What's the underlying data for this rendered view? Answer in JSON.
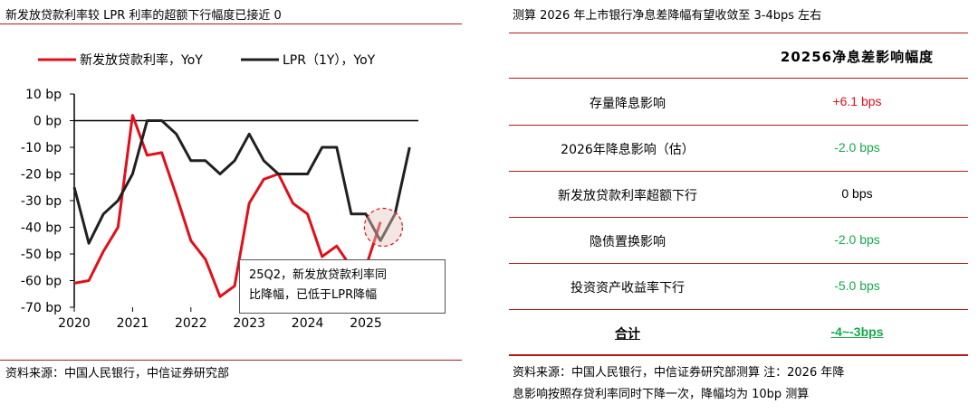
{
  "left": {
    "title": "新发放贷款利率较 LPR 利率的超额下行幅度已接近 0",
    "legend": [
      {
        "label": "新发放贷款利率，YoY",
        "color": "#e0101a"
      },
      {
        "label": "LPR（1Y），YoY",
        "color": "#231f20"
      }
    ],
    "annotation": "25Q2，新发放贷款利率同\n比降幅，已低于LPR降幅",
    "source": "资料来源：中国人民银行，中信证券研究部"
  },
  "chart_data": {
    "type": "line",
    "title": "新发放贷款利率较 LPR 利率的超额下行幅度已接近 0",
    "ylim": [
      -70,
      10
    ],
    "xlim": [
      2020,
      2025.9
    ],
    "yticks": [
      "10 bp",
      "0 bp",
      "-10 bp",
      "-20 bp",
      "-30 bp",
      "-40 bp",
      "-50 bp",
      "-60 bp",
      "-70 bp"
    ],
    "ytick_values": [
      10,
      0,
      -10,
      -20,
      -30,
      -40,
      -50,
      -60,
      -70
    ],
    "xticks": [
      "2020",
      "2021",
      "2022",
      "2023",
      "2024",
      "2025"
    ],
    "xtick_values": [
      2020,
      2021,
      2022,
      2023,
      2024,
      2025
    ],
    "series": [
      {
        "name": "新发放贷款利率，YoY",
        "color": "#e0101a",
        "x": [
          2020.0,
          2020.25,
          2020.5,
          2020.75,
          2021.0,
          2021.25,
          2021.5,
          2021.75,
          2022.0,
          2022.25,
          2022.5,
          2022.75,
          2023.0,
          2023.25,
          2023.5,
          2023.75,
          2024.0,
          2024.25,
          2024.5,
          2024.75,
          2025.0,
          2025.25
        ],
        "values": [
          -61,
          -60,
          -49,
          -40,
          2,
          -13,
          -12,
          -28,
          -45,
          -52,
          -66,
          -62,
          -31,
          -22,
          -20,
          -31,
          -35,
          -51,
          -47,
          -55,
          -55,
          -38
        ]
      },
      {
        "name": "LPR（1Y），YoY",
        "color": "#231f20",
        "x": [
          2020.0,
          2020.25,
          2020.5,
          2020.75,
          2021.0,
          2021.25,
          2021.5,
          2021.75,
          2022.0,
          2022.25,
          2022.5,
          2022.75,
          2023.0,
          2023.25,
          2023.5,
          2023.75,
          2024.0,
          2024.25,
          2024.5,
          2024.75,
          2025.0,
          2025.25,
          2025.5,
          2025.75
        ],
        "values": [
          -25,
          -46,
          -35,
          -30,
          -20,
          0,
          0,
          -5,
          -15,
          -15,
          -20,
          -15,
          -5,
          -15,
          -20,
          -20,
          -20,
          -10,
          -10,
          -35,
          -35,
          -45,
          -35,
          -10
        ]
      }
    ],
    "highlight": {
      "x": 2025.3,
      "y": -40
    }
  },
  "right": {
    "title": "测算 2026 年上市银行净息差降幅有望收敛至 3-4bps 左右",
    "header": "20256净息差影响幅度",
    "rows": [
      {
        "label": "存量降息影响",
        "value": "+6.1 bps",
        "color": "red"
      },
      {
        "label": "2026年降息影响（估）",
        "value": "-2.0 bps",
        "color": "green"
      },
      {
        "label": "新发放贷款利率超额下行",
        "value": "0 bps",
        "color": "black"
      },
      {
        "label": "隐债置换影响",
        "value": "-2.0 bps",
        "color": "green"
      },
      {
        "label": "投资资产收益率下行",
        "value": "-5.0 bps",
        "color": "green"
      }
    ],
    "total": {
      "label": "合计",
      "value": "-4~-3bps"
    },
    "source_line1": "资料来源：中国人民银行，中信证券研究部测算  注：2026 年降",
    "source_line2": "息影响按照存贷利率同时下降一次，降幅均为 10bp 测算"
  }
}
